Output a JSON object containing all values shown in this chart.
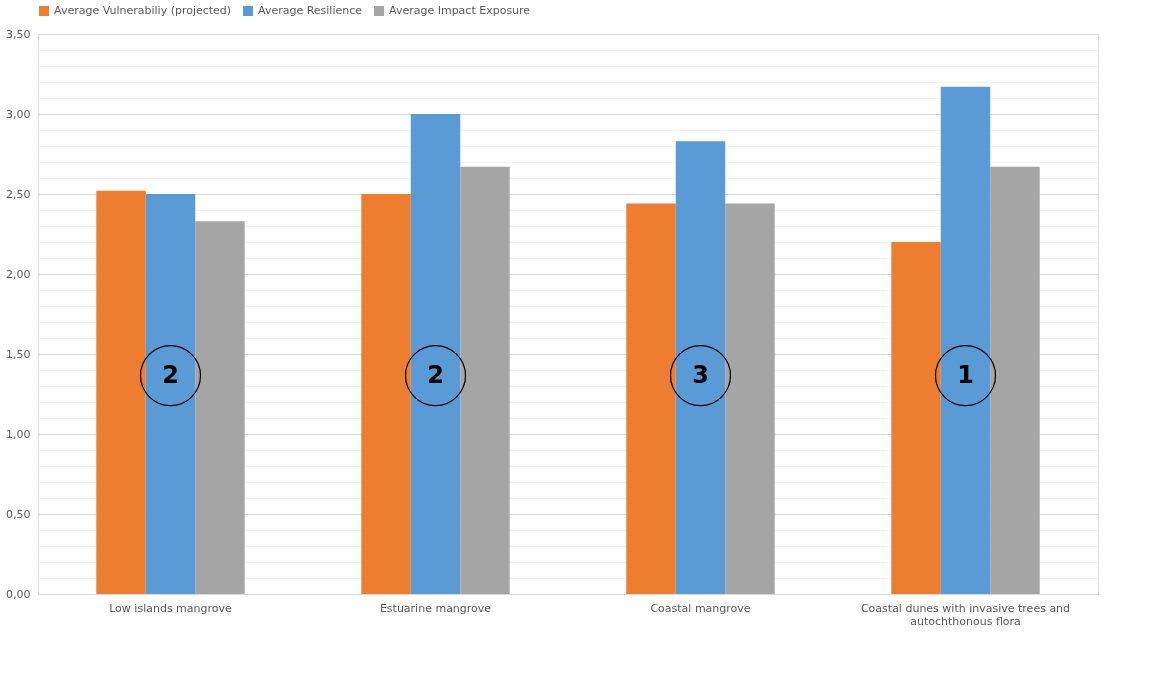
{
  "chart_data": {
    "type": "bar",
    "categories": [
      "Low islands mangrove",
      "Estuarine mangrove",
      "Coastal mangrove",
      "Coastal dunes with invasive trees and autochthonous flora"
    ],
    "series": [
      {
        "name": "Average Vulnerabiliy (projected)",
        "color": "#ed7d31",
        "values": [
          2.52,
          2.5,
          2.44,
          2.2
        ]
      },
      {
        "name": "Average Resilience",
        "color": "#5b9bd5",
        "values": [
          2.5,
          3.0,
          2.83,
          3.17
        ]
      },
      {
        "name": "Average Impact Exposure",
        "color": "#a5a5a5",
        "values": [
          2.33,
          2.67,
          2.44,
          2.67
        ]
      }
    ],
    "ylim": [
      0,
      3.5
    ],
    "yticks": [
      {
        "value": 0,
        "label": "0,00"
      },
      {
        "value": 0.1,
        "label": null
      },
      {
        "value": 0.2,
        "label": null
      },
      {
        "value": 0.3,
        "label": null
      },
      {
        "value": 0.4,
        "label": null
      },
      {
        "value": 0.5,
        "label": "0,50"
      },
      {
        "value": 0.6,
        "label": null
      },
      {
        "value": 0.7,
        "label": null
      },
      {
        "value": 0.8,
        "label": null
      },
      {
        "value": 0.9,
        "label": null
      },
      {
        "value": 1.0,
        "label": "1,00"
      },
      {
        "value": 1.1,
        "label": null
      },
      {
        "value": 1.2,
        "label": null
      },
      {
        "value": 1.3,
        "label": null
      },
      {
        "value": 1.4,
        "label": null
      },
      {
        "value": 1.5,
        "label": "1,50"
      },
      {
        "value": 1.6,
        "label": null
      },
      {
        "value": 1.7,
        "label": null
      },
      {
        "value": 1.8,
        "label": null
      },
      {
        "value": 1.9,
        "label": null
      },
      {
        "value": 2.0,
        "label": "2,00"
      },
      {
        "value": 2.1,
        "label": null
      },
      {
        "value": 2.2,
        "label": null
      },
      {
        "value": 2.3,
        "label": null
      },
      {
        "value": 2.4,
        "label": null
      },
      {
        "value": 2.5,
        "label": "2,50"
      },
      {
        "value": 2.6,
        "label": null
      },
      {
        "value": 2.7,
        "label": null
      },
      {
        "value": 2.8,
        "label": null
      },
      {
        "value": 2.9,
        "label": null
      },
      {
        "value": 3.0,
        "label": "3,00"
      },
      {
        "value": 3.1,
        "label": null
      },
      {
        "value": 3.2,
        "label": null
      },
      {
        "value": 3.3,
        "label": null
      },
      {
        "value": 3.4,
        "label": null
      },
      {
        "value": 3.5,
        "label": "3,50"
      }
    ],
    "grid": "y",
    "legend": "top",
    "annotations": [
      "2",
      "2",
      "3",
      "1"
    ]
  }
}
